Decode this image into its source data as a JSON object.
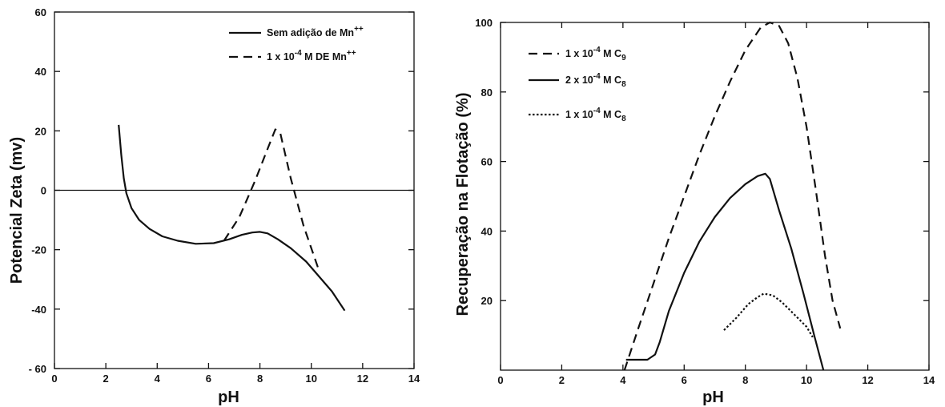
{
  "chart_data": [
    {
      "type": "line",
      "title": "",
      "xlabel": "pH",
      "ylabel": "Potencial Zeta  (mv)",
      "xlim": [
        0,
        14
      ],
      "ylim": [
        -60,
        60
      ],
      "x_ticks": [
        "0",
        "2",
        "4",
        "6",
        "8",
        "10",
        "12",
        "14"
      ],
      "y_ticks": [
        "- 60",
        "-40",
        "-20",
        "0",
        "20",
        "40",
        "60"
      ],
      "reference_line": {
        "y": 0
      },
      "legend_position": "top-right",
      "series": [
        {
          "name": "Sem adição de Mn",
          "name_superscript": "++",
          "style": "solid",
          "x": [
            2.5,
            2.6,
            2.7,
            2.8,
            3.0,
            3.3,
            3.7,
            4.2,
            4.8,
            5.5,
            6.2,
            6.8,
            7.3,
            7.7,
            8.0,
            8.3,
            8.7,
            9.2,
            9.8,
            10.3,
            10.8,
            11.3
          ],
          "y": [
            22,
            12,
            4,
            -1,
            -6,
            -10,
            -13,
            -15.5,
            -17,
            -18,
            -17.8,
            -16.5,
            -15,
            -14.2,
            -14,
            -14.5,
            -16.5,
            -19.5,
            -24,
            -29,
            -34,
            -40.5
          ]
        },
        {
          "name": "1 x 10",
          "name_exponent": "-4",
          "name_suffix": " M  DE  Mn",
          "name_superscript": "++",
          "style": "dashed",
          "x": [
            6.6,
            7.2,
            7.8,
            8.3,
            8.6,
            8.8,
            9.2,
            9.7,
            10.3
          ],
          "y": [
            -17,
            -9,
            3,
            14,
            20.5,
            19,
            4,
            -12,
            -27
          ]
        }
      ]
    },
    {
      "type": "line",
      "title": "",
      "xlabel": "pH",
      "ylabel": "Recuperação na Flotação (%)",
      "xlim": [
        0,
        14
      ],
      "ylim": [
        0,
        100
      ],
      "x_ticks": [
        "0",
        "2",
        "4",
        "6",
        "8",
        "10",
        "12",
        "14"
      ],
      "y_ticks": [
        "20",
        "40",
        "60",
        "80",
        "100"
      ],
      "legend_position": "top-left",
      "series": [
        {
          "name": "1 x 10",
          "name_exponent": "-4",
          "name_suffix": "  M C",
          "name_subscript": "9",
          "style": "dashed",
          "x": [
            4.05,
            4.5,
            5.0,
            5.5,
            6.0,
            6.5,
            7.0,
            7.5,
            8.0,
            8.5,
            8.8,
            9.1,
            9.4,
            9.7,
            10.0,
            10.3,
            10.6,
            10.85,
            11.1
          ],
          "y": [
            0,
            12,
            25,
            38,
            50,
            62,
            73,
            83,
            92,
            98.5,
            100,
            99,
            94,
            84,
            70,
            52,
            33,
            20,
            12
          ]
        },
        {
          "name": "2 x 10",
          "name_exponent": "-4",
          "name_suffix": "  M C",
          "name_subscript": "8",
          "style": "solid",
          "x": [
            4.1,
            4.4,
            4.8,
            5.05,
            5.2,
            5.5,
            6.0,
            6.5,
            7.0,
            7.5,
            8.0,
            8.4,
            8.65,
            8.8,
            9.1,
            9.5,
            9.9,
            10.25,
            10.55
          ],
          "y": [
            3,
            3,
            3,
            4.5,
            8,
            17,
            28,
            37,
            44,
            49.5,
            53.5,
            55.8,
            56.5,
            55,
            46,
            35,
            22,
            10,
            0
          ]
        },
        {
          "name": "1 x 10",
          "name_exponent": "-4",
          "name_suffix": "  M C",
          "name_subscript": "8",
          "style": "dotted",
          "x": [
            7.3,
            7.7,
            8.1,
            8.4,
            8.6,
            8.9,
            9.2,
            9.6,
            10.0,
            10.2
          ],
          "y": [
            11.5,
            15,
            19,
            21,
            22,
            21.5,
            19.5,
            16,
            12.5,
            9.5
          ]
        }
      ]
    }
  ]
}
